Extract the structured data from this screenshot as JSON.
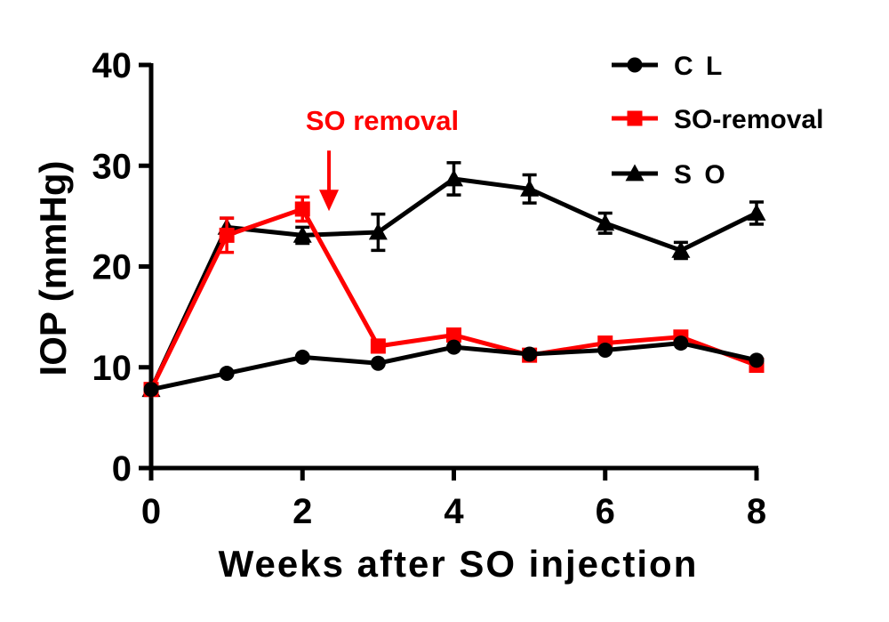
{
  "chart_data": {
    "type": "line",
    "title": "",
    "xlabel": "Weeks after SO injection",
    "ylabel": "IOP (mmHg)",
    "xlim": [
      0,
      8
    ],
    "ylim": [
      0,
      40
    ],
    "x_ticks": [
      0,
      2,
      4,
      6,
      8
    ],
    "y_ticks": [
      0,
      10,
      20,
      30,
      40
    ],
    "grid": false,
    "legend_position": "top-right",
    "series": [
      {
        "name": "C L",
        "color": "#000000",
        "marker": "circle",
        "x": [
          0,
          1,
          2,
          3,
          4,
          5,
          6,
          7,
          8
        ],
        "values": [
          7.8,
          9.4,
          11.0,
          10.4,
          12.0,
          11.3,
          11.7,
          12.4,
          10.7
        ],
        "errors": [
          0.4,
          0.4,
          0.4,
          0.4,
          0.4,
          0.4,
          0.4,
          0.4,
          0.4
        ]
      },
      {
        "name": "SO-removal",
        "color": "#ff0000",
        "marker": "square",
        "x": [
          0,
          1,
          2,
          3,
          4,
          5,
          6,
          7,
          8
        ],
        "values": [
          7.8,
          23.1,
          25.7,
          12.1,
          13.2,
          11.2,
          12.4,
          13.0,
          10.2
        ],
        "errors": [
          0.4,
          1.7,
          1.2,
          0.6,
          0.5,
          0.5,
          0.5,
          0.5,
          0.5
        ]
      },
      {
        "name": "S O",
        "color": "#000000",
        "marker": "triangle",
        "x": [
          0,
          1,
          2,
          3,
          4,
          5,
          6,
          7,
          8
        ],
        "values": [
          7.8,
          23.9,
          23.1,
          23.4,
          28.7,
          27.7,
          24.3,
          21.6,
          25.3
        ],
        "errors": [
          0.4,
          0.9,
          0.8,
          1.8,
          1.6,
          1.4,
          1.0,
          0.8,
          1.1
        ]
      }
    ],
    "annotations": [
      {
        "text": "SO removal",
        "color": "#ff0000",
        "arrow_x": 2.35,
        "arrow_y_from": 31.5,
        "arrow_y_to": 25.5
      }
    ]
  }
}
